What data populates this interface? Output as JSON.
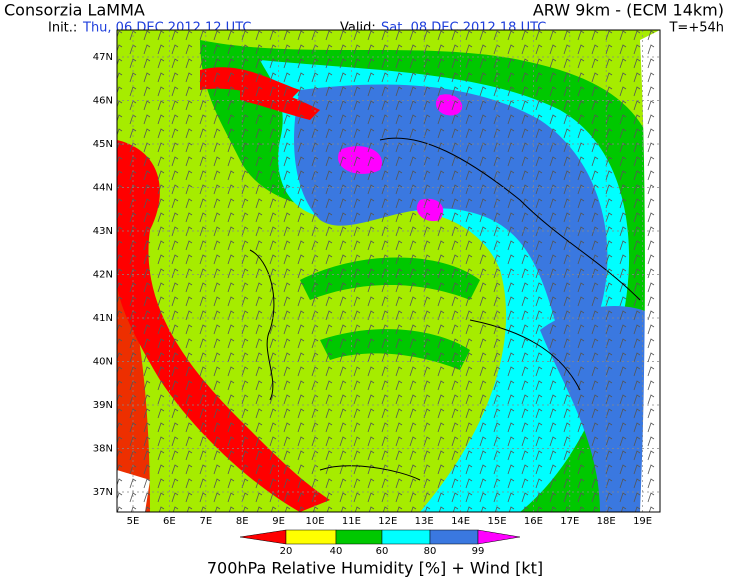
{
  "header": {
    "title": "Consorzia LaMMA",
    "model": "ARW 9km - (ECM 14km)",
    "init_label": "Init.:",
    "init_date": "Thu, 06 DEC 2012  12 UTC",
    "valid_label": "Valid:",
    "valid_date": "Sat, 08 DEC 2012  18 UTC",
    "forecast_time": "T=+54h"
  },
  "map": {
    "lat_labels": [
      "47N",
      "46N",
      "45N",
      "44N",
      "43N",
      "42N",
      "41N",
      "40N",
      "39N",
      "38N",
      "37N"
    ],
    "lon_labels": [
      "5E",
      "6E",
      "7E",
      "8E",
      "9E",
      "10E",
      "11E",
      "12E",
      "13E",
      "14E",
      "15E",
      "16E",
      "17E",
      "18E",
      "19E"
    ]
  },
  "colorbar": {
    "labels": [
      "20",
      "40",
      "60",
      "80",
      "99"
    ]
  },
  "footer": {
    "caption": "700hPa Relative Humidity [%] + Wind [kt]"
  }
}
